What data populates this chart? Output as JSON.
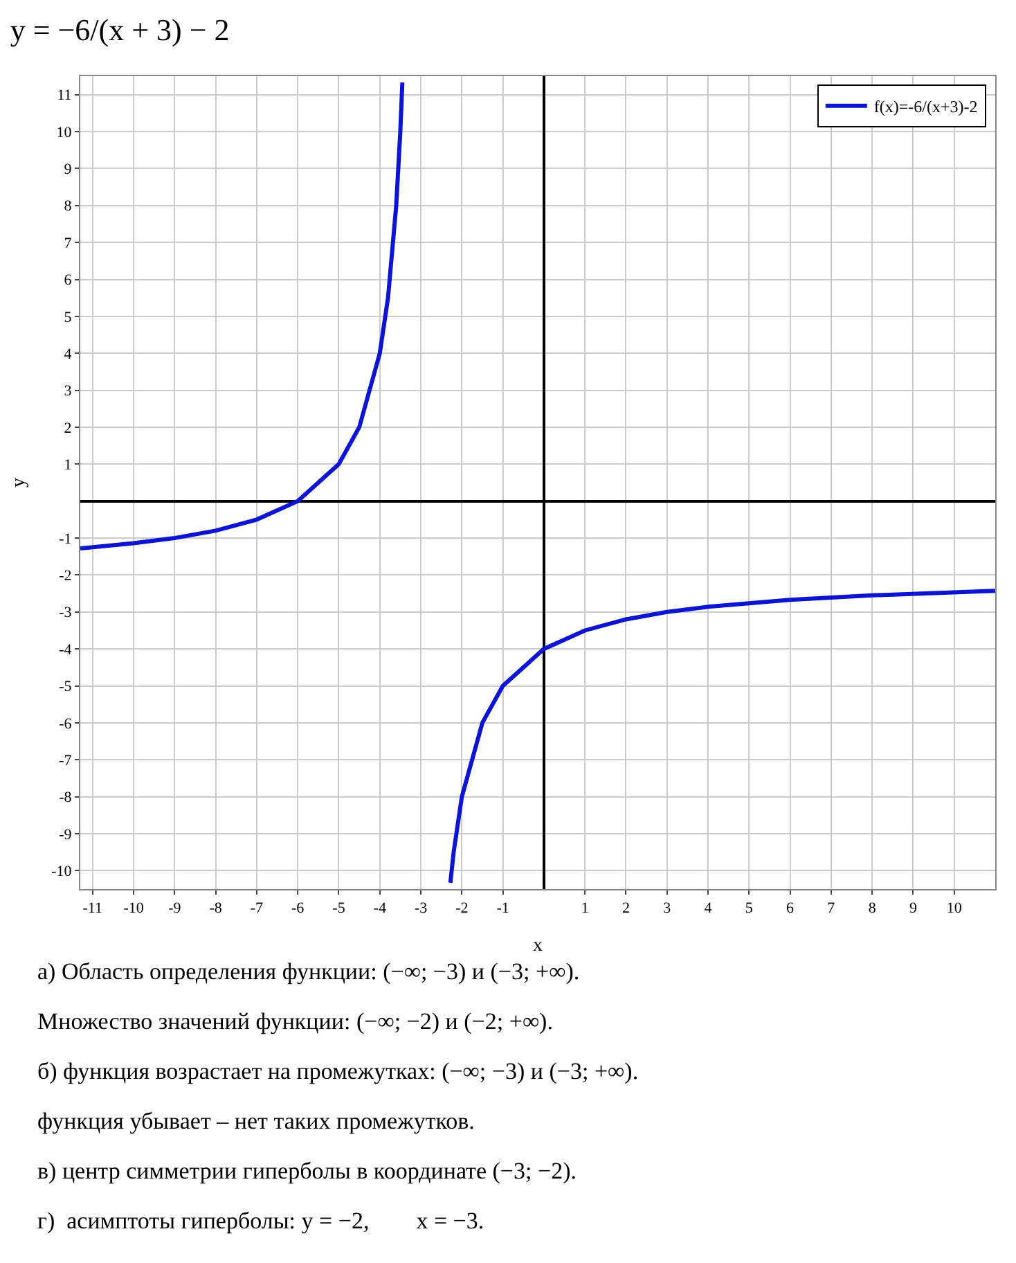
{
  "chart_data": {
    "type": "line",
    "title": "y = −6/(x + 3) − 2",
    "xlabel": "x",
    "ylabel": "y",
    "series": [
      {
        "name": "f(x)=-6/(x+3)-2",
        "color": "#0a14d2",
        "x": [
          -11.3,
          -10,
          -9,
          -8,
          -7,
          -6,
          -5,
          -4.5,
          -4,
          -3.8,
          -3.6,
          -3.5,
          -3.45,
          null,
          -2.28,
          -2.2,
          -2,
          -1.5,
          -1,
          0,
          1,
          2,
          3,
          4,
          6,
          8,
          11
        ],
        "values": [
          -1.28,
          -1.14,
          -1,
          -0.8,
          -0.5,
          0,
          1,
          2,
          4,
          5.5,
          8,
          10,
          11.33,
          null,
          -10.33,
          -9.5,
          -8,
          -6,
          -5,
          -4,
          -3.5,
          -3.2,
          -3,
          -2.86,
          -2.67,
          -2.55,
          -2.43
        ]
      }
    ],
    "xlim": [
      -11.3,
      11
    ],
    "ylim": [
      -10.5,
      11.5
    ],
    "xticks": [
      -11,
      -10,
      -9,
      -8,
      -7,
      -6,
      -5,
      -4,
      -3,
      -2,
      -1,
      1,
      2,
      3,
      4,
      5,
      6,
      7,
      8,
      9,
      10
    ],
    "yticks": [
      -10,
      -9,
      -8,
      -7,
      -6,
      -5,
      -4,
      -3,
      -2,
      -1,
      1,
      2,
      3,
      4,
      5,
      6,
      7,
      8,
      9,
      10,
      11
    ],
    "grid": true,
    "legend": "top right",
    "marker": "none",
    "line_style": "solid",
    "annotations": [
      "а) Область определения функции: (−∞; −3) и (−3; +∞).",
      "Множество значений функции: (−∞; −2) и (−2; +∞).",
      "б) функция возрастает на промежутках: (−∞; −3) и (−3; +∞).",
      "функция убывает – нет таких промежутков.",
      "в) центр симметрии гиперболы в координате (−3; −2).",
      "г)  асимптоты гиперболы: y = −2,        x = −3."
    ]
  }
}
